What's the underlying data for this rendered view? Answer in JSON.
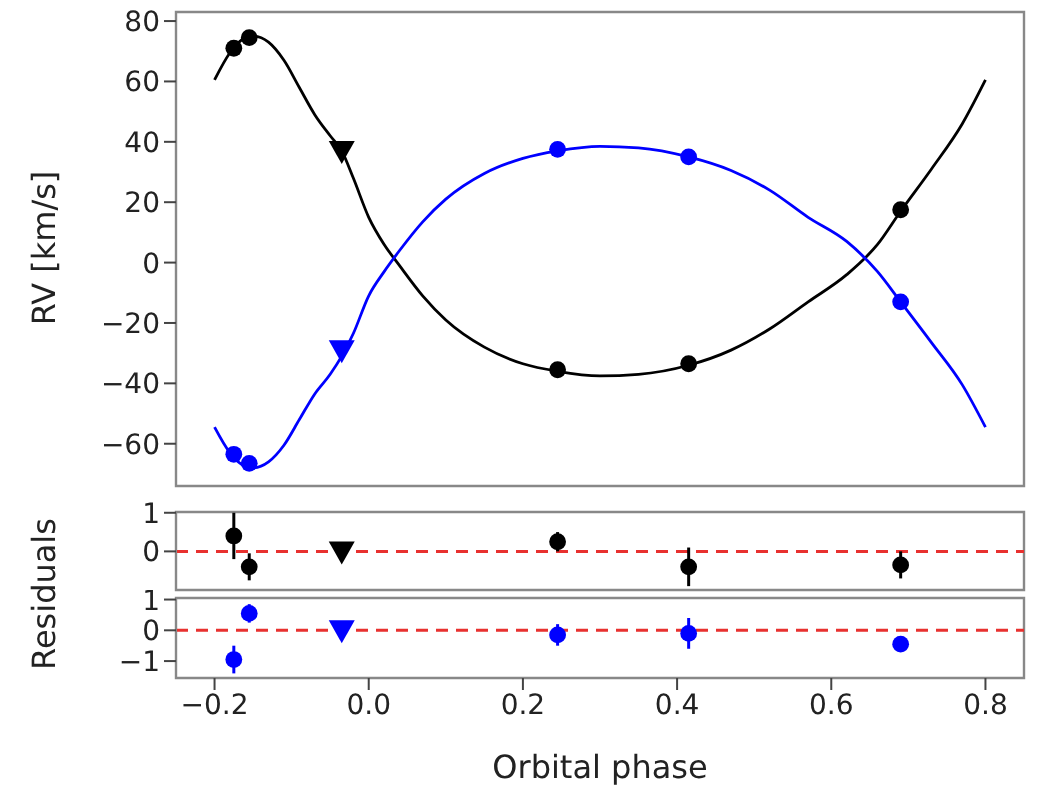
{
  "chart_data": [
    {
      "type": "line",
      "ylabel": "RV [km/s]",
      "xlim": [
        -0.25,
        0.85
      ],
      "ylim": [
        -74,
        83
      ],
      "yticks": [
        {
          "value": -60,
          "label": "−60"
        },
        {
          "value": -40,
          "label": "−40"
        },
        {
          "value": -20,
          "label": "−20"
        },
        0,
        20,
        40,
        60,
        80
      ],
      "tick_labels": "y",
      "series": [
        {
          "color": "#000000",
          "line_style": "solid",
          "marker": "none",
          "x": [
            -0.2,
            -0.18,
            -0.16,
            -0.15,
            -0.13,
            -0.11,
            -0.09,
            -0.07,
            -0.05,
            -0.035,
            -0.02,
            0,
            0.02,
            0.04,
            0.07,
            0.1,
            0.15,
            0.2,
            0.245,
            0.3,
            0.35,
            0.415,
            0.47,
            0.52,
            0.57,
            0.62,
            0.66,
            0.69,
            0.73,
            0.77,
            0.8
          ],
          "values": [
            60.5,
            69.5,
            74.5,
            75,
            73,
            67,
            58,
            49,
            42,
            37,
            28,
            15,
            6,
            -1,
            -11,
            -19,
            -28,
            -33.5,
            -36,
            -37.5,
            -37,
            -34,
            -29,
            -22,
            -13,
            -4,
            6,
            17,
            31,
            46,
            60.5
          ]
        },
        {
          "color": "#0000ff",
          "line_style": "solid",
          "marker": "none",
          "x": [
            -0.2,
            -0.18,
            -0.16,
            -0.15,
            -0.13,
            -0.11,
            -0.09,
            -0.07,
            -0.05,
            -0.035,
            -0.02,
            0,
            0.02,
            0.04,
            0.07,
            0.1,
            0.15,
            0.2,
            0.245,
            0.3,
            0.35,
            0.415,
            0.47,
            0.52,
            0.57,
            0.62,
            0.66,
            0.69,
            0.73,
            0.77,
            0.8
          ],
          "values": [
            -54.5,
            -63,
            -67.5,
            -68,
            -66,
            -60.5,
            -52,
            -43.5,
            -37,
            -31,
            -23.5,
            -11,
            -3,
            4,
            13.5,
            21,
            29.5,
            34.5,
            37,
            38.5,
            38,
            35,
            30.5,
            24,
            15,
            7,
            -3,
            -13,
            -26.5,
            -40.5,
            -54.5
          ]
        },
        {
          "type": "scatter",
          "color": "#000000",
          "marker": "circle",
          "x": [
            -0.175,
            -0.155,
            0.245,
            0.415,
            0.69
          ],
          "values": [
            71,
            74.5,
            -35.5,
            -33.5,
            17.5
          ]
        },
        {
          "type": "scatter",
          "color": "#000000",
          "marker": "triangle",
          "x": [
            -0.035
          ],
          "values": [
            37
          ]
        },
        {
          "type": "scatter",
          "color": "#0000ff",
          "marker": "circle",
          "x": [
            -0.175,
            -0.155,
            0.245,
            0.415,
            0.69
          ],
          "values": [
            -63.5,
            -66.5,
            37.5,
            35,
            -13
          ]
        },
        {
          "type": "scatter",
          "color": "#0000ff",
          "marker": "triangle",
          "x": [
            -0.035
          ],
          "values": [
            -29
          ]
        }
      ]
    },
    {
      "type": "scatter",
      "ylabel": "Residuals",
      "xlim": [
        -0.25,
        0.85
      ],
      "ylim": [
        -1,
        1.02
      ],
      "yticks": [
        0,
        1
      ],
      "tick_labels": "y",
      "ref_lines": [
        {
          "axis": "y",
          "value": 0,
          "color": "#e8312f",
          "line_style": "dashed"
        }
      ],
      "series": [
        {
          "color": "#000000",
          "marker": "circle",
          "x": [
            -0.175,
            -0.155,
            0.245,
            0.415,
            0.69
          ],
          "values": [
            0.4,
            -0.4,
            0.25,
            -0.4,
            -0.35
          ],
          "errors": [
            0.6,
            0.35,
            0.25,
            0.5,
            0.35
          ]
        },
        {
          "color": "#000000",
          "marker": "triangle",
          "x": [
            -0.035
          ],
          "values": [
            0
          ]
        }
      ]
    },
    {
      "type": "scatter",
      "xlabel": "Orbital phase",
      "xlim": [
        -0.25,
        0.85
      ],
      "xticks": [
        {
          "value": -0.2,
          "label": "−0.2"
        },
        {
          "value": 0,
          "label": "0.0"
        },
        {
          "value": 0.2,
          "label": "0.2"
        },
        {
          "value": 0.4,
          "label": "0.4"
        },
        {
          "value": 0.6,
          "label": "0.6"
        },
        {
          "value": 0.8,
          "label": "0.8"
        }
      ],
      "ylim": [
        -1.55,
        1.05
      ],
      "yticks": [
        {
          "value": -1,
          "label": "−1"
        },
        0,
        1
      ],
      "ref_lines": [
        {
          "axis": "y",
          "value": 0,
          "color": "#e8312f",
          "line_style": "dashed"
        }
      ],
      "series": [
        {
          "color": "#0000ff",
          "marker": "circle",
          "x": [
            -0.175,
            -0.155,
            0.245,
            0.415,
            0.69
          ],
          "values": [
            -0.95,
            0.55,
            -0.15,
            -0.1,
            -0.45
          ],
          "errors": [
            0.45,
            0.3,
            0.35,
            0.5,
            0.1
          ]
        },
        {
          "color": "#0000ff",
          "marker": "triangle",
          "x": [
            -0.035
          ],
          "values": [
            0
          ]
        }
      ]
    }
  ]
}
